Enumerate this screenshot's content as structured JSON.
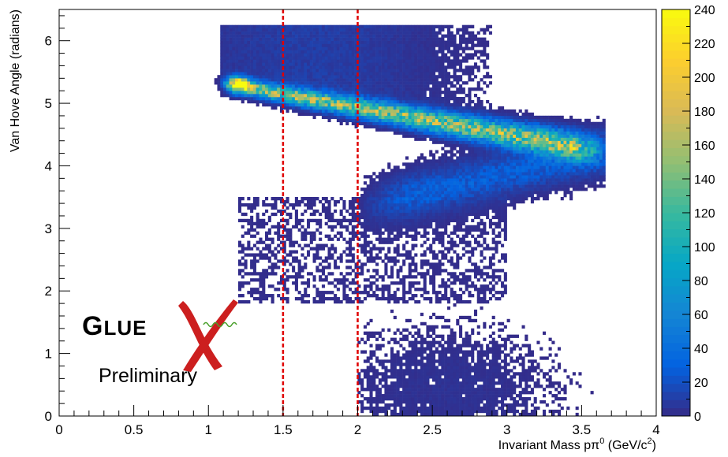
{
  "chart_data": {
    "type": "heatmap",
    "title": "",
    "xlabel": "Invariant Mass pπ",
    "xlabel_sup": "0",
    "xlabel_unit": " (GeV/c",
    "xlabel_unit_sup": "2",
    "xlabel_unit_close": ")",
    "ylabel": "Van Hove Angle (radians)",
    "xlim": [
      0,
      4
    ],
    "ylim": [
      0,
      6.5
    ],
    "x_ticks": [
      0,
      0.5,
      1,
      1.5,
      2,
      2.5,
      3,
      3.5,
      4
    ],
    "x_tick_labels": [
      "0",
      "0.5",
      "1",
      "1.5",
      "2",
      "2.5",
      "3",
      "3.5",
      "4"
    ],
    "y_ticks": [
      0,
      1,
      2,
      3,
      4,
      5,
      6
    ],
    "y_tick_labels": [
      "0",
      "1",
      "2",
      "3",
      "4",
      "5",
      "6"
    ],
    "color_scale": {
      "min": 0,
      "max": 240,
      "ticks": [
        0,
        20,
        40,
        60,
        80,
        100,
        120,
        140,
        160,
        180,
        200,
        220,
        240
      ],
      "tick_labels": [
        "0",
        "20",
        "40",
        "60",
        "80",
        "100",
        "120",
        "140",
        "160",
        "180",
        "200",
        "220",
        "240"
      ],
      "colors": [
        "#352a87",
        "#0363e1",
        "#1485d4",
        "#06a7c6",
        "#38b99e",
        "#92bf73",
        "#d9ba56",
        "#fcce2e",
        "#f9fb0e"
      ]
    },
    "cut_lines": {
      "x": [
        1.5,
        2.0
      ],
      "color": "#e00000",
      "style": "dashed"
    },
    "density_features": [
      {
        "name": "upper band",
        "x_range": [
          1.1,
          3.65
        ],
        "y_start": 5.3,
        "y_end": 4.2,
        "peak_count": 180
      },
      {
        "name": "lower band",
        "x_range": [
          2.2,
          3.65
        ],
        "y_start": 3.3,
        "y_end": 4.2,
        "peak_count": 40
      },
      {
        "name": "hotspot",
        "x": 1.2,
        "y": 5.3,
        "peak_count": 240
      },
      {
        "name": "scattered low-angle",
        "x_range": [
          2.0,
          3.5
        ],
        "y_range": [
          0,
          1.7
        ],
        "peak_count": 10
      }
    ]
  },
  "logo": {
    "brand": "GLUEX",
    "subtitle": "Preliminary",
    "colors": {
      "text": "#2e3192",
      "x_mark": "#cc1f1f",
      "wave": "#4aa02c"
    }
  }
}
